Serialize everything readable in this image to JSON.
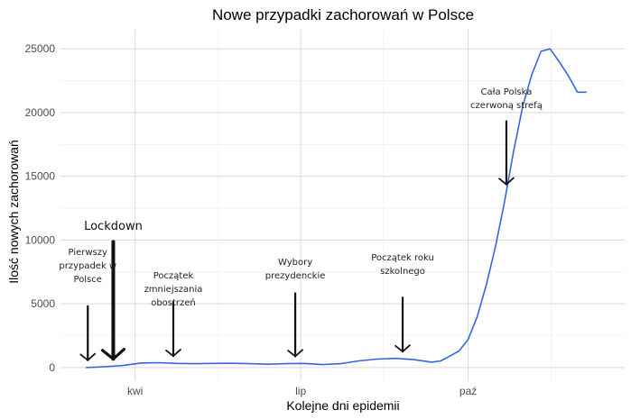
{
  "chart_data": {
    "type": "line",
    "title": "Nowe przypadki zachorowań w Polsce",
    "xlabel": "Kolejne dni epidemii",
    "ylabel": "Ilość nowych zachorowań",
    "ylim": [
      -1000,
      26500
    ],
    "xlim": [
      -14,
      296
    ],
    "grid": true,
    "y_ticks": [
      0,
      5000,
      10000,
      15000,
      20000,
      25000
    ],
    "x_ticks": [
      {
        "label": "kwi",
        "day": 27
      },
      {
        "label": "lip",
        "day": 118
      },
      {
        "label": "paź",
        "day": 210
      }
    ],
    "series": [
      {
        "color": "#3366e0",
        "x": [
          0,
          10,
          20,
          30,
          40,
          50,
          60,
          70,
          80,
          90,
          100,
          110,
          120,
          130,
          140,
          150,
          160,
          170,
          180,
          190,
          195,
          200,
          205,
          210,
          215,
          220,
          225,
          230,
          235,
          240,
          245,
          250,
          255,
          260,
          265,
          270,
          275
        ],
        "y": [
          0,
          60,
          150,
          350,
          380,
          320,
          300,
          320,
          330,
          300,
          260,
          300,
          320,
          230,
          300,
          520,
          660,
          720,
          620,
          420,
          520,
          900,
          1300,
          2200,
          4000,
          6500,
          9500,
          13000,
          17000,
          20500,
          23000,
          24800,
          25000,
          24000,
          22900,
          21600,
          21600
        ]
      }
    ],
    "annotations": [
      {
        "text": [
          "Pierwszy",
          "przypadek w",
          "Polsce"
        ],
        "day": 1
      },
      {
        "text": [
          "Lockdown"
        ],
        "day": 15
      },
      {
        "text": [
          "Początek",
          "zmniejszania",
          "obostrzeń"
        ],
        "day": 48
      },
      {
        "text": [
          "Wybory",
          "prezydenckie"
        ],
        "day": 115
      },
      {
        "text": [
          "Początek roku",
          "szkolnego"
        ],
        "day": 174
      },
      {
        "text": [
          "Cała Polska",
          "czerwoną strefą"
        ],
        "day": 231
      }
    ]
  }
}
